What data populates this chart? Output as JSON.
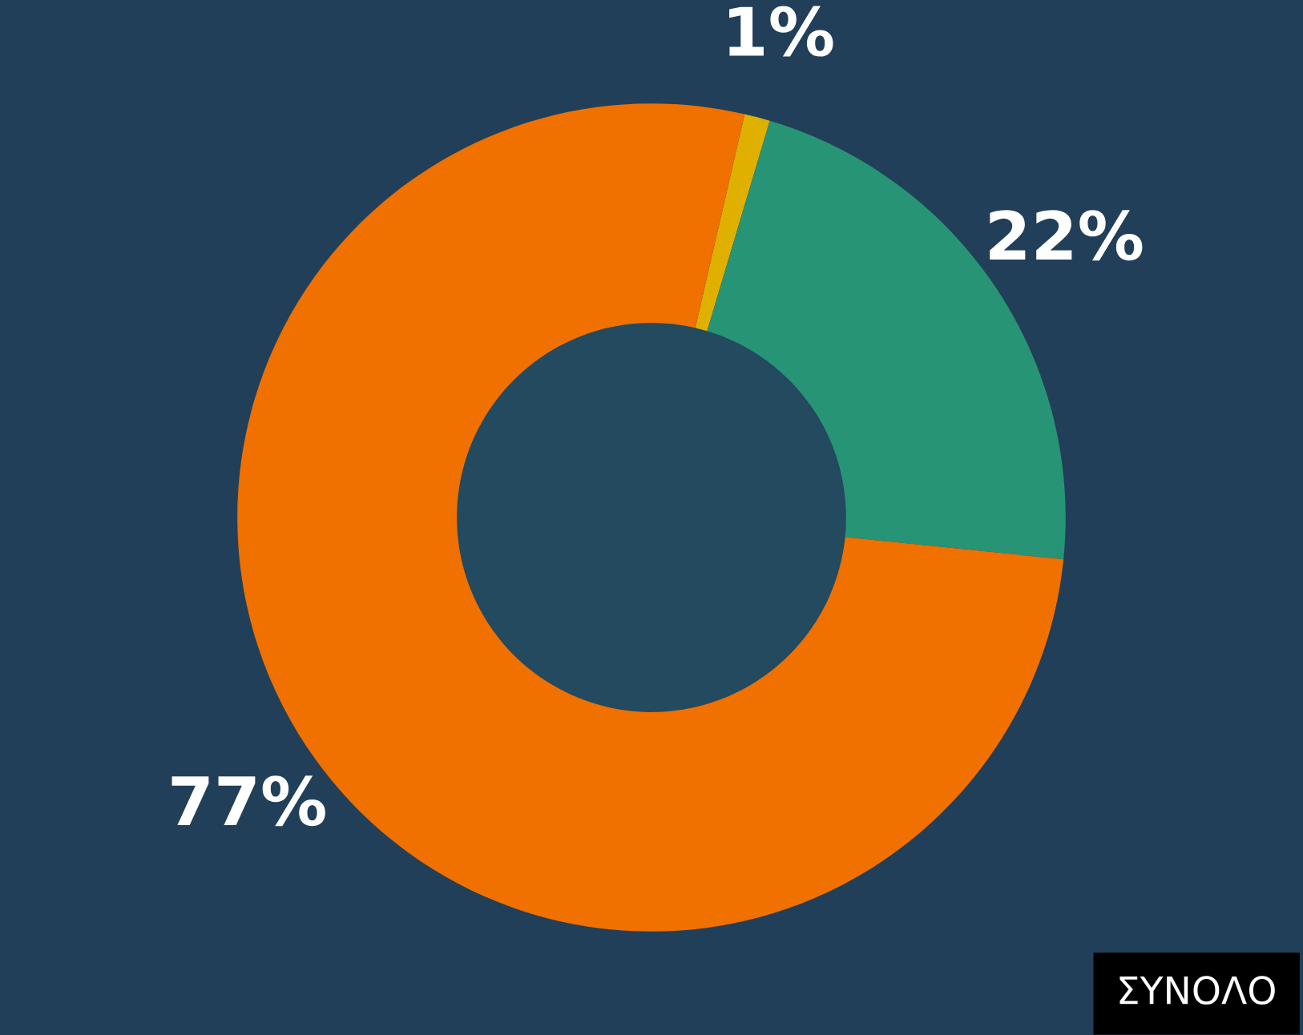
{
  "chart_data": {
    "type": "donut",
    "categories": [
      null,
      null,
      null
    ],
    "values": [
      1,
      22,
      77
    ],
    "colors": [
      "#e0b000",
      "#279475",
      "#f07000"
    ],
    "value_labels": [
      "1%",
      "22%",
      "77%"
    ],
    "annotations": [
      "ΣΥΝΟΛΟ"
    ],
    "legend": false
  }
}
